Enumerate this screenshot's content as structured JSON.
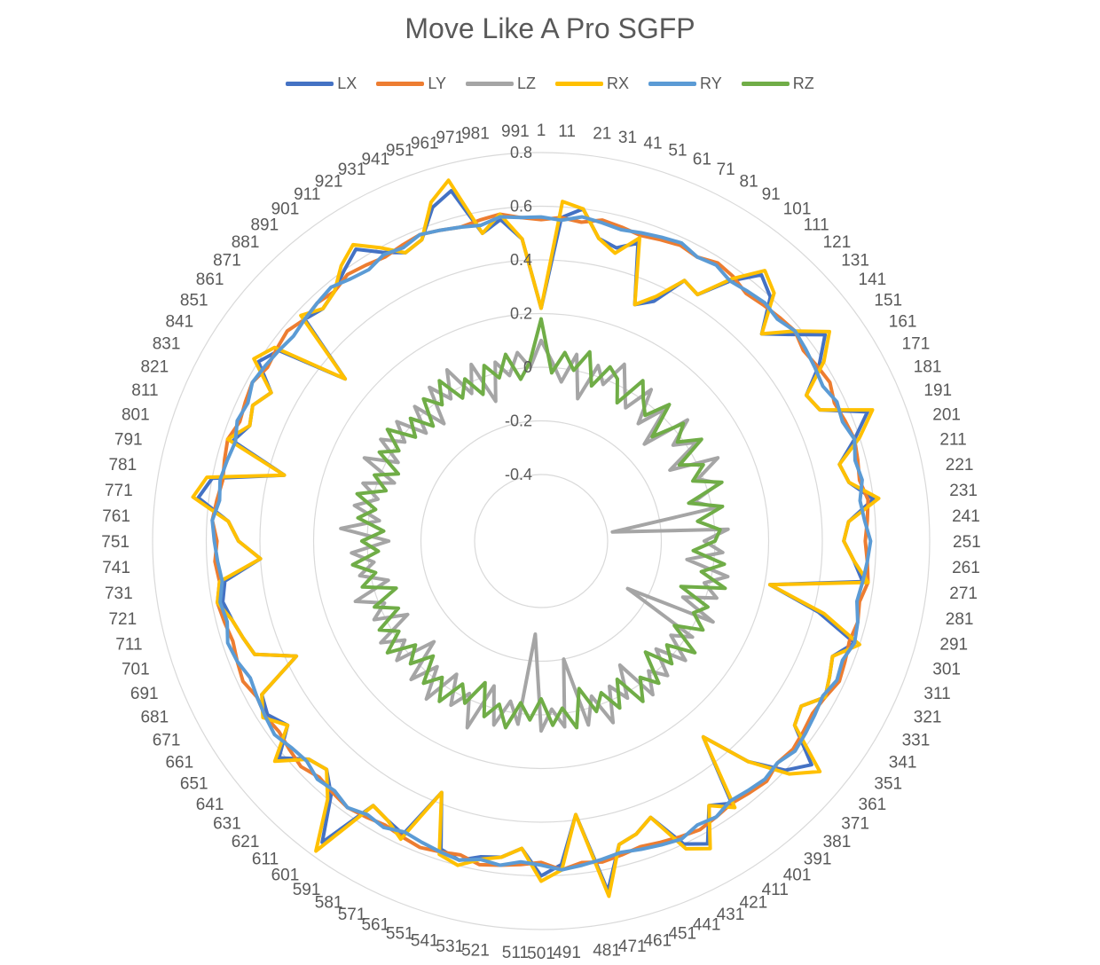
{
  "chart_data": {
    "type": "radar",
    "title": "Move Like A  Pro SGFP",
    "categories_note_start": 1,
    "category_step": 10,
    "category_count": 1000,
    "radial_axis": {
      "min": -0.4,
      "max": 0.8,
      "step": 0.2,
      "tick_labels": [
        "-0.4",
        "-0.2",
        "0",
        "0.2",
        "0.4",
        "0.6",
        "0.8"
      ]
    },
    "grid": true,
    "legend_position": "top",
    "series": [
      {
        "name": "LX",
        "color": "#4472C4",
        "values": [
          0.22,
          0.56,
          0.6,
          0.5,
          0.48,
          0.52,
          0.3,
          0.34,
          0.46,
          0.44,
          0.55,
          0.64,
          0.6,
          0.48,
          0.56,
          0.66,
          0.58,
          0.48,
          0.5,
          0.66,
          0.58,
          0.5,
          0.52,
          0.6,
          0.5,
          0.48,
          0.52,
          0.56,
          0.22,
          0.42,
          0.58,
          0.52,
          0.54,
          0.56,
          0.5,
          0.52,
          0.66,
          0.6,
          0.48,
          0.3,
          0.56,
          0.52,
          0.64,
          0.6,
          0.46,
          0.5,
          0.52,
          0.68,
          0.38,
          0.56,
          0.6,
          0.5,
          0.54,
          0.55,
          0.58,
          0.56,
          0.36,
          0.56,
          0.54,
          0.52,
          0.74,
          0.58,
          0.52,
          0.54,
          0.62,
          0.52,
          0.56,
          0.54,
          0.36,
          0.5,
          0.52,
          0.54,
          0.56,
          0.54,
          0.4,
          0.48,
          0.52,
          0.64,
          0.6,
          0.34,
          0.56,
          0.52,
          0.54,
          0.5,
          0.6,
          0.56,
          0.3,
          0.56,
          0.54,
          0.56,
          0.6,
          0.64,
          0.58,
          0.54,
          0.56,
          0.66,
          0.7,
          0.52,
          0.56,
          0.48
        ]
      },
      {
        "name": "LY",
        "color": "#ED7D31",
        "values": [
          0.55,
          0.56,
          0.55,
          0.57,
          0.56,
          0.55,
          0.56,
          0.57,
          0.56,
          0.58,
          0.57,
          0.55,
          0.56,
          0.57,
          0.58,
          0.56,
          0.57,
          0.58,
          0.56,
          0.57,
          0.58,
          0.57,
          0.56,
          0.58,
          0.57,
          0.56,
          0.57,
          0.58,
          0.56,
          0.57,
          0.56,
          0.57,
          0.58,
          0.56,
          0.55,
          0.56,
          0.57,
          0.56,
          0.58,
          0.57,
          0.56,
          0.57,
          0.58,
          0.57,
          0.56,
          0.55,
          0.56,
          0.57,
          0.56,
          0.58,
          0.55,
          0.56,
          0.57,
          0.58,
          0.56,
          0.57,
          0.58,
          0.57,
          0.56,
          0.57,
          0.58,
          0.57,
          0.56,
          0.58,
          0.57,
          0.56,
          0.57,
          0.56,
          0.58,
          0.57,
          0.56,
          0.57,
          0.58,
          0.56,
          0.57,
          0.56,
          0.58,
          0.57,
          0.56,
          0.57,
          0.58,
          0.56,
          0.57,
          0.58,
          0.56,
          0.57,
          0.58,
          0.56,
          0.57,
          0.56,
          0.58,
          0.57,
          0.56,
          0.57,
          0.58,
          0.57,
          0.56,
          0.57,
          0.58,
          0.56
        ]
      },
      {
        "name": "LZ",
        "color": "#A5A5A5",
        "values": [
          0.1,
          0.02,
          -0.05,
          0.06,
          -0.1,
          0.04,
          -0.02,
          0.08,
          0.0,
          -0.06,
          0.05,
          -0.08,
          0.03,
          -0.12,
          0.06,
          -0.04,
          0.04,
          -0.1,
          0.08,
          -0.02,
          0.05,
          -0.06,
          0.02,
          -0.38,
          0.05,
          -0.04,
          0.03,
          -0.1,
          0.06,
          -0.02,
          0.04,
          -0.08,
          0.06,
          -0.28,
          0.02,
          -0.05,
          0.05,
          -0.06,
          0.04,
          -0.02,
          0.06,
          -0.1,
          0.02,
          -0.05,
          0.08,
          -0.04,
          0.06,
          -0.2,
          0.05,
          -0.02,
          0.06,
          -0.3,
          0.04,
          -0.04,
          0.06,
          -0.08,
          0.1,
          -0.02,
          0.05,
          -0.06,
          0.08,
          -0.04,
          0.06,
          -0.1,
          0.05,
          -0.02,
          0.06,
          -0.08,
          0.04,
          -0.02,
          0.08,
          -0.06,
          0.04,
          -0.02,
          0.06,
          -0.08,
          0.1,
          -0.04,
          0.06,
          -0.02,
          0.05,
          -0.06,
          0.08,
          -0.04,
          0.06,
          -0.02,
          0.05,
          -0.06,
          0.04,
          -0.08,
          0.06,
          -0.02,
          0.08,
          -0.04,
          0.06,
          -0.1,
          0.04,
          -0.02,
          0.06,
          0.0
        ]
      },
      {
        "name": "RX",
        "color": "#FFC000",
        "values": [
          0.22,
          0.62,
          0.6,
          0.5,
          0.46,
          0.54,
          0.3,
          0.36,
          0.46,
          0.44,
          0.56,
          0.66,
          0.62,
          0.48,
          0.58,
          0.68,
          0.6,
          0.48,
          0.5,
          0.68,
          0.6,
          0.5,
          0.52,
          0.62,
          0.5,
          0.48,
          0.52,
          0.58,
          0.22,
          0.44,
          0.6,
          0.52,
          0.54,
          0.56,
          0.5,
          0.52,
          0.7,
          0.62,
          0.48,
          0.3,
          0.58,
          0.52,
          0.66,
          0.62,
          0.46,
          0.5,
          0.52,
          0.7,
          0.38,
          0.58,
          0.62,
          0.5,
          0.54,
          0.56,
          0.6,
          0.58,
          0.36,
          0.58,
          0.54,
          0.52,
          0.78,
          0.6,
          0.52,
          0.54,
          0.64,
          0.52,
          0.58,
          0.54,
          0.36,
          0.5,
          0.52,
          0.54,
          0.58,
          0.56,
          0.4,
          0.48,
          0.52,
          0.66,
          0.62,
          0.34,
          0.58,
          0.52,
          0.54,
          0.5,
          0.62,
          0.58,
          0.3,
          0.58,
          0.54,
          0.56,
          0.62,
          0.66,
          0.6,
          0.54,
          0.56,
          0.68,
          0.74,
          0.52,
          0.58,
          0.48
        ]
      },
      {
        "name": "RY",
        "color": "#5B9BD5",
        "values": [
          0.56,
          0.55,
          0.57,
          0.56,
          0.55,
          0.56,
          0.57,
          0.58,
          0.56,
          0.57,
          0.55,
          0.56,
          0.57,
          0.56,
          0.58,
          0.57,
          0.56,
          0.55,
          0.57,
          0.56,
          0.58,
          0.56,
          0.57,
          0.55,
          0.56,
          0.58,
          0.57,
          0.56,
          0.55,
          0.57,
          0.58,
          0.56,
          0.57,
          0.55,
          0.56,
          0.57,
          0.58,
          0.56,
          0.57,
          0.56,
          0.55,
          0.57,
          0.56,
          0.58,
          0.57,
          0.56,
          0.55,
          0.56,
          0.57,
          0.58,
          0.56,
          0.55,
          0.57,
          0.56,
          0.58,
          0.57,
          0.56,
          0.55,
          0.57,
          0.56,
          0.58,
          0.56,
          0.57,
          0.55,
          0.56,
          0.58,
          0.57,
          0.56,
          0.55,
          0.57,
          0.58,
          0.56,
          0.57,
          0.55,
          0.56,
          0.57,
          0.58,
          0.56,
          0.57,
          0.56,
          0.55,
          0.57,
          0.56,
          0.58,
          0.57,
          0.56,
          0.55,
          0.56,
          0.57,
          0.58,
          0.56,
          0.55,
          0.57,
          0.56,
          0.58,
          0.57,
          0.56,
          0.55,
          0.57,
          0.56
        ]
      },
      {
        "name": "RZ",
        "color": "#70AD47",
        "values": [
          0.18,
          -0.02,
          0.06,
          0.0,
          0.08,
          -0.04,
          0.05,
          0.02,
          -0.06,
          0.06,
          0.0,
          -0.04,
          0.05,
          -0.08,
          0.04,
          -0.02,
          0.06,
          -0.06,
          0.02,
          -0.04,
          0.06,
          -0.08,
          0.04,
          -0.06,
          0.02,
          0.0,
          -0.08,
          0.04,
          -0.04,
          0.06,
          -0.1,
          0.02,
          -0.02,
          0.04,
          -0.06,
          0.06,
          -0.04,
          0.02,
          -0.08,
          0.04,
          -0.02,
          0.06,
          -0.06,
          0.04,
          -0.04,
          0.02,
          -0.08,
          0.06,
          -0.02,
          0.04,
          -0.06,
          0.02,
          -0.04,
          0.06,
          -0.02,
          0.04,
          -0.08,
          0.02,
          -0.04,
          0.06,
          -0.02,
          0.04,
          -0.06,
          0.02,
          -0.04,
          0.06,
          -0.02,
          0.04,
          -0.06,
          0.02,
          -0.08,
          0.04,
          -0.02,
          0.06,
          -0.04,
          0.02,
          -0.06,
          0.04,
          -0.02,
          0.06,
          -0.04,
          0.02,
          -0.06,
          0.04,
          -0.02,
          0.06,
          -0.04,
          0.02,
          -0.06,
          0.04,
          -0.02,
          0.06,
          -0.04,
          0.02,
          -0.06,
          0.04,
          -0.02,
          0.06,
          -0.04,
          0.02
        ]
      }
    ]
  }
}
